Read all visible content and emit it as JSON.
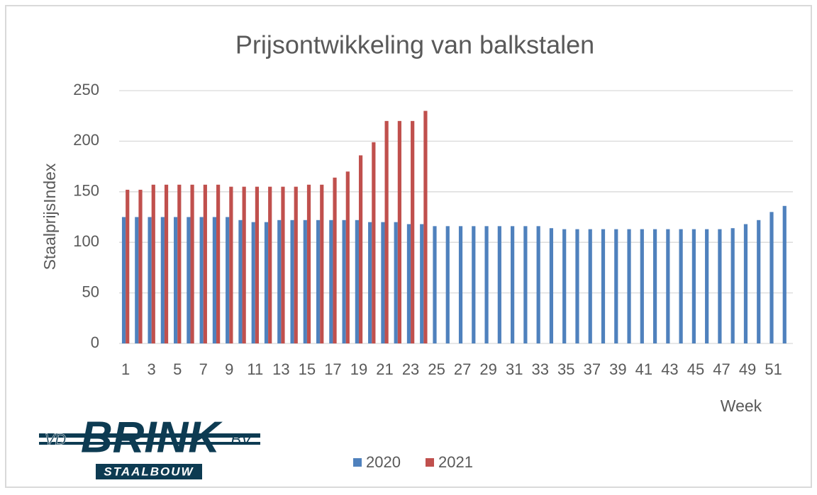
{
  "chart_data": {
    "type": "bar",
    "title": "Prijsontwikkeling van balkstalen",
    "y_label": "StaalprijsIndex",
    "x_label": "Week",
    "categories": [
      "1",
      null,
      "3",
      null,
      "5",
      null,
      "7",
      null,
      "9",
      null,
      "11",
      null,
      "13",
      null,
      "15",
      null,
      "17",
      null,
      "19",
      null,
      "21",
      null,
      "23",
      null,
      "25",
      null,
      "27",
      null,
      "29",
      null,
      "31",
      null,
      "33",
      null,
      "35",
      null,
      "37",
      null,
      "39",
      null,
      "41",
      null,
      "43",
      null,
      "45",
      null,
      "47",
      null,
      "49",
      null,
      "51",
      null
    ],
    "series": [
      {
        "name": "2020",
        "color": "#4f81bd",
        "values": [
          125,
          125,
          125,
          125,
          125,
          125,
          125,
          125,
          125,
          122,
          120,
          120,
          122,
          122,
          122,
          122,
          122,
          122,
          122,
          120,
          120,
          120,
          118,
          118,
          116,
          116,
          116,
          116,
          116,
          116,
          116,
          116,
          116,
          114,
          113,
          113,
          113,
          113,
          113,
          113,
          113,
          113,
          113,
          113,
          113,
          113,
          113,
          114,
          118,
          122,
          130,
          136
        ]
      },
      {
        "name": "2021",
        "color": "#c0504d",
        "values": [
          152,
          152,
          157,
          157,
          157,
          157,
          157,
          157,
          155,
          155,
          155,
          155,
          155,
          155,
          157,
          157,
          164,
          170,
          186,
          199,
          220,
          220,
          220,
          230,
          null,
          null,
          null,
          null,
          null,
          null,
          null,
          null,
          null,
          null,
          null,
          null,
          null,
          null,
          null,
          null,
          null,
          null,
          null,
          null,
          null,
          null,
          null,
          null,
          null,
          null,
          null,
          null
        ]
      }
    ],
    "ylim": [
      0,
      250
    ],
    "yticks": [
      0,
      50,
      100,
      150,
      200,
      250
    ],
    "grid": true,
    "legend": "bottom"
  },
  "logo": {
    "left": "VD",
    "name": "BRINK",
    "right": "BV",
    "sub": "STAALBOUW"
  }
}
